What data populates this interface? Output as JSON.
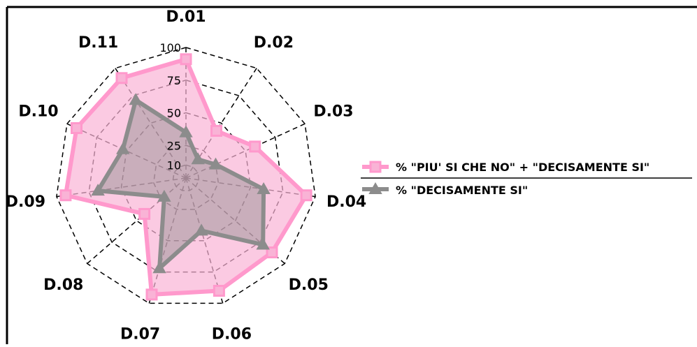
{
  "colors": {
    "series1_fill": "#f9b3d6",
    "series1_line": "#ff99cc",
    "series2_line": "#8c8c8c",
    "grid": "#000000",
    "frame": "#000000"
  },
  "chart_data": {
    "type": "radar",
    "categories": [
      "D.01",
      "D.02",
      "D.03",
      "D.04",
      "D.05",
      "D.06",
      "D.07",
      "D.08",
      "D.09",
      "D.10",
      "D.11"
    ],
    "radial_ticks": [
      10,
      25,
      50,
      75,
      100
    ],
    "radial_tick_labels": [
      "10",
      "25",
      "50",
      "75",
      "100"
    ],
    "rlim": [
      0,
      100
    ],
    "grid": true,
    "legend_position": "right",
    "series": [
      {
        "name": "% \"PIU' SI CHE NO\" + \"DECISAMENTE SI\"",
        "marker": "square",
        "values": [
          91,
          43,
          58,
          93,
          87,
          90,
          93,
          42,
          93,
          92,
          91
        ]
      },
      {
        "name": "% \"DECISAMENTE SI\"",
        "marker": "triangle",
        "values": [
          35,
          17,
          25,
          60,
          78,
          42,
          72,
          22,
          68,
          53,
          71
        ]
      }
    ]
  }
}
